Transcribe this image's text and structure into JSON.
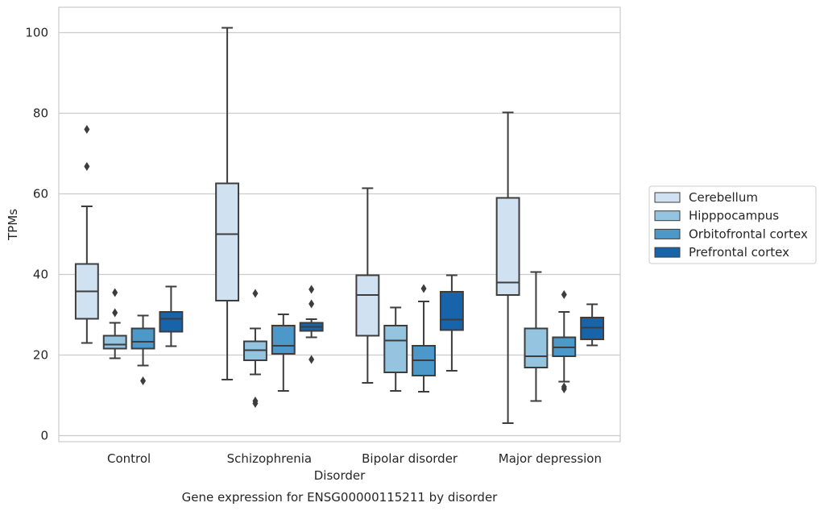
{
  "chart_data": {
    "type": "box",
    "caption": "Gene expression for ENSG00000115211 by disorder",
    "xlabel": "Disorder",
    "ylabel": "TPMs",
    "categories": [
      "Control",
      "Schizophrenia",
      "Bipolar disorder",
      "Major depression"
    ],
    "yticks": [
      0,
      20,
      40,
      60,
      80,
      100
    ],
    "ylim": [
      -1.5,
      106.3
    ],
    "grid": true,
    "legend_position": "right",
    "colors": [
      "#d0e1f2",
      "#94c4df",
      "#4b98c9",
      "#1764ab"
    ],
    "series": [
      {
        "name": "Cerebellum",
        "boxes": [
          {
            "min": 23.0,
            "q1": 29.0,
            "median": 35.8,
            "q3": 42.6,
            "max": 56.9,
            "outliers": [
              66.8,
              76.0
            ]
          },
          {
            "min": 13.9,
            "q1": 33.5,
            "median": 50.0,
            "q3": 62.6,
            "max": 101.2,
            "outliers": []
          },
          {
            "min": 13.1,
            "q1": 24.8,
            "median": 34.9,
            "q3": 39.8,
            "max": 61.4,
            "outliers": []
          },
          {
            "min": 3.1,
            "q1": 34.9,
            "median": 38.0,
            "q3": 59.0,
            "max": 80.2,
            "outliers": []
          }
        ]
      },
      {
        "name": "Hipppocampus",
        "boxes": [
          {
            "min": 19.2,
            "q1": 21.6,
            "median": 22.6,
            "q3": 24.8,
            "max": 28.0,
            "outliers": [
              30.5,
              35.5
            ]
          },
          {
            "min": 15.2,
            "q1": 18.7,
            "median": 21.2,
            "q3": 23.4,
            "max": 26.6,
            "outliers": [
              8.0,
              8.6,
              35.3
            ]
          },
          {
            "min": 11.1,
            "q1": 15.7,
            "median": 23.6,
            "q3": 27.3,
            "max": 31.8,
            "outliers": []
          },
          {
            "min": 8.6,
            "q1": 16.9,
            "median": 19.7,
            "q3": 26.6,
            "max": 40.6,
            "outliers": []
          }
        ]
      },
      {
        "name": "Orbitofrontal cortex",
        "boxes": [
          {
            "min": 17.4,
            "q1": 21.6,
            "median": 23.3,
            "q3": 26.6,
            "max": 29.8,
            "outliers": [
              13.6
            ]
          },
          {
            "min": 11.1,
            "q1": 20.3,
            "median": 22.3,
            "q3": 27.3,
            "max": 30.1,
            "outliers": []
          },
          {
            "min": 10.9,
            "q1": 14.9,
            "median": 18.7,
            "q3": 22.3,
            "max": 33.3,
            "outliers": [
              36.5
            ]
          },
          {
            "min": 13.4,
            "q1": 19.7,
            "median": 21.9,
            "q3": 24.4,
            "max": 30.7,
            "outliers": [
              11.6,
              12.1,
              35.0
            ]
          }
        ]
      },
      {
        "name": "Prefrontal cortex",
        "boxes": [
          {
            "min": 22.2,
            "q1": 25.8,
            "median": 29.0,
            "q3": 30.7,
            "max": 37.0,
            "outliers": []
          },
          {
            "min": 24.4,
            "q1": 26.0,
            "median": 27.0,
            "q3": 28.0,
            "max": 28.9,
            "outliers": [
              18.9,
              32.7,
              36.3
            ]
          },
          {
            "min": 16.1,
            "q1": 26.2,
            "median": 28.8,
            "q3": 35.7,
            "max": 39.8,
            "outliers": []
          },
          {
            "min": 22.4,
            "q1": 23.9,
            "median": 26.8,
            "q3": 29.3,
            "max": 32.6,
            "outliers": []
          }
        ]
      }
    ]
  }
}
